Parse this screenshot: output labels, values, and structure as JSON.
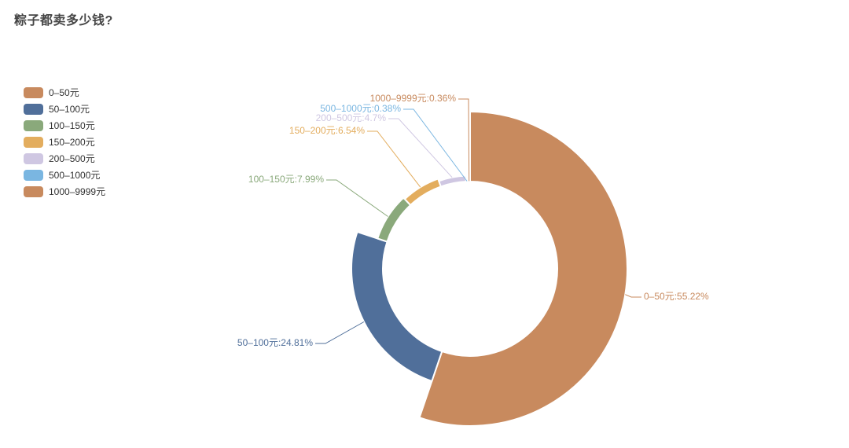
{
  "title": "粽子都卖多少钱?",
  "legend": {
    "position": "left",
    "items": [
      "0–50元",
      "50–100元",
      "100–150元",
      "150–200元",
      "200–500元",
      "500–1000元",
      "1000–9999元"
    ]
  },
  "chart_data": {
    "type": "pie",
    "variant": "rose-donut",
    "title": "粽子都卖多少钱?",
    "categories": [
      "0–50元",
      "50–100元",
      "100–150元",
      "150–200元",
      "200–500元",
      "500–1000元",
      "1000–9999元"
    ],
    "values": [
      55.22,
      24.81,
      7.99,
      6.54,
      4.7,
      0.38,
      0.36
    ],
    "value_unit": "%",
    "slice_labels": [
      "0–50元:55.22%",
      "50–100元:24.81%",
      "100–150元:7.99%",
      "150–200元:6.54%",
      "200–500元:4.7%",
      "500–1000元:0.38%",
      "1000–9999元:0.36%"
    ],
    "colors": [
      "#c88a5e",
      "#506f9a",
      "#8aa97b",
      "#e3ad5e",
      "#cfc7e2",
      "#7ab6e1",
      "#c88a5e"
    ],
    "label_position": "outside",
    "legend_position": "left",
    "background": "#ffffff"
  }
}
